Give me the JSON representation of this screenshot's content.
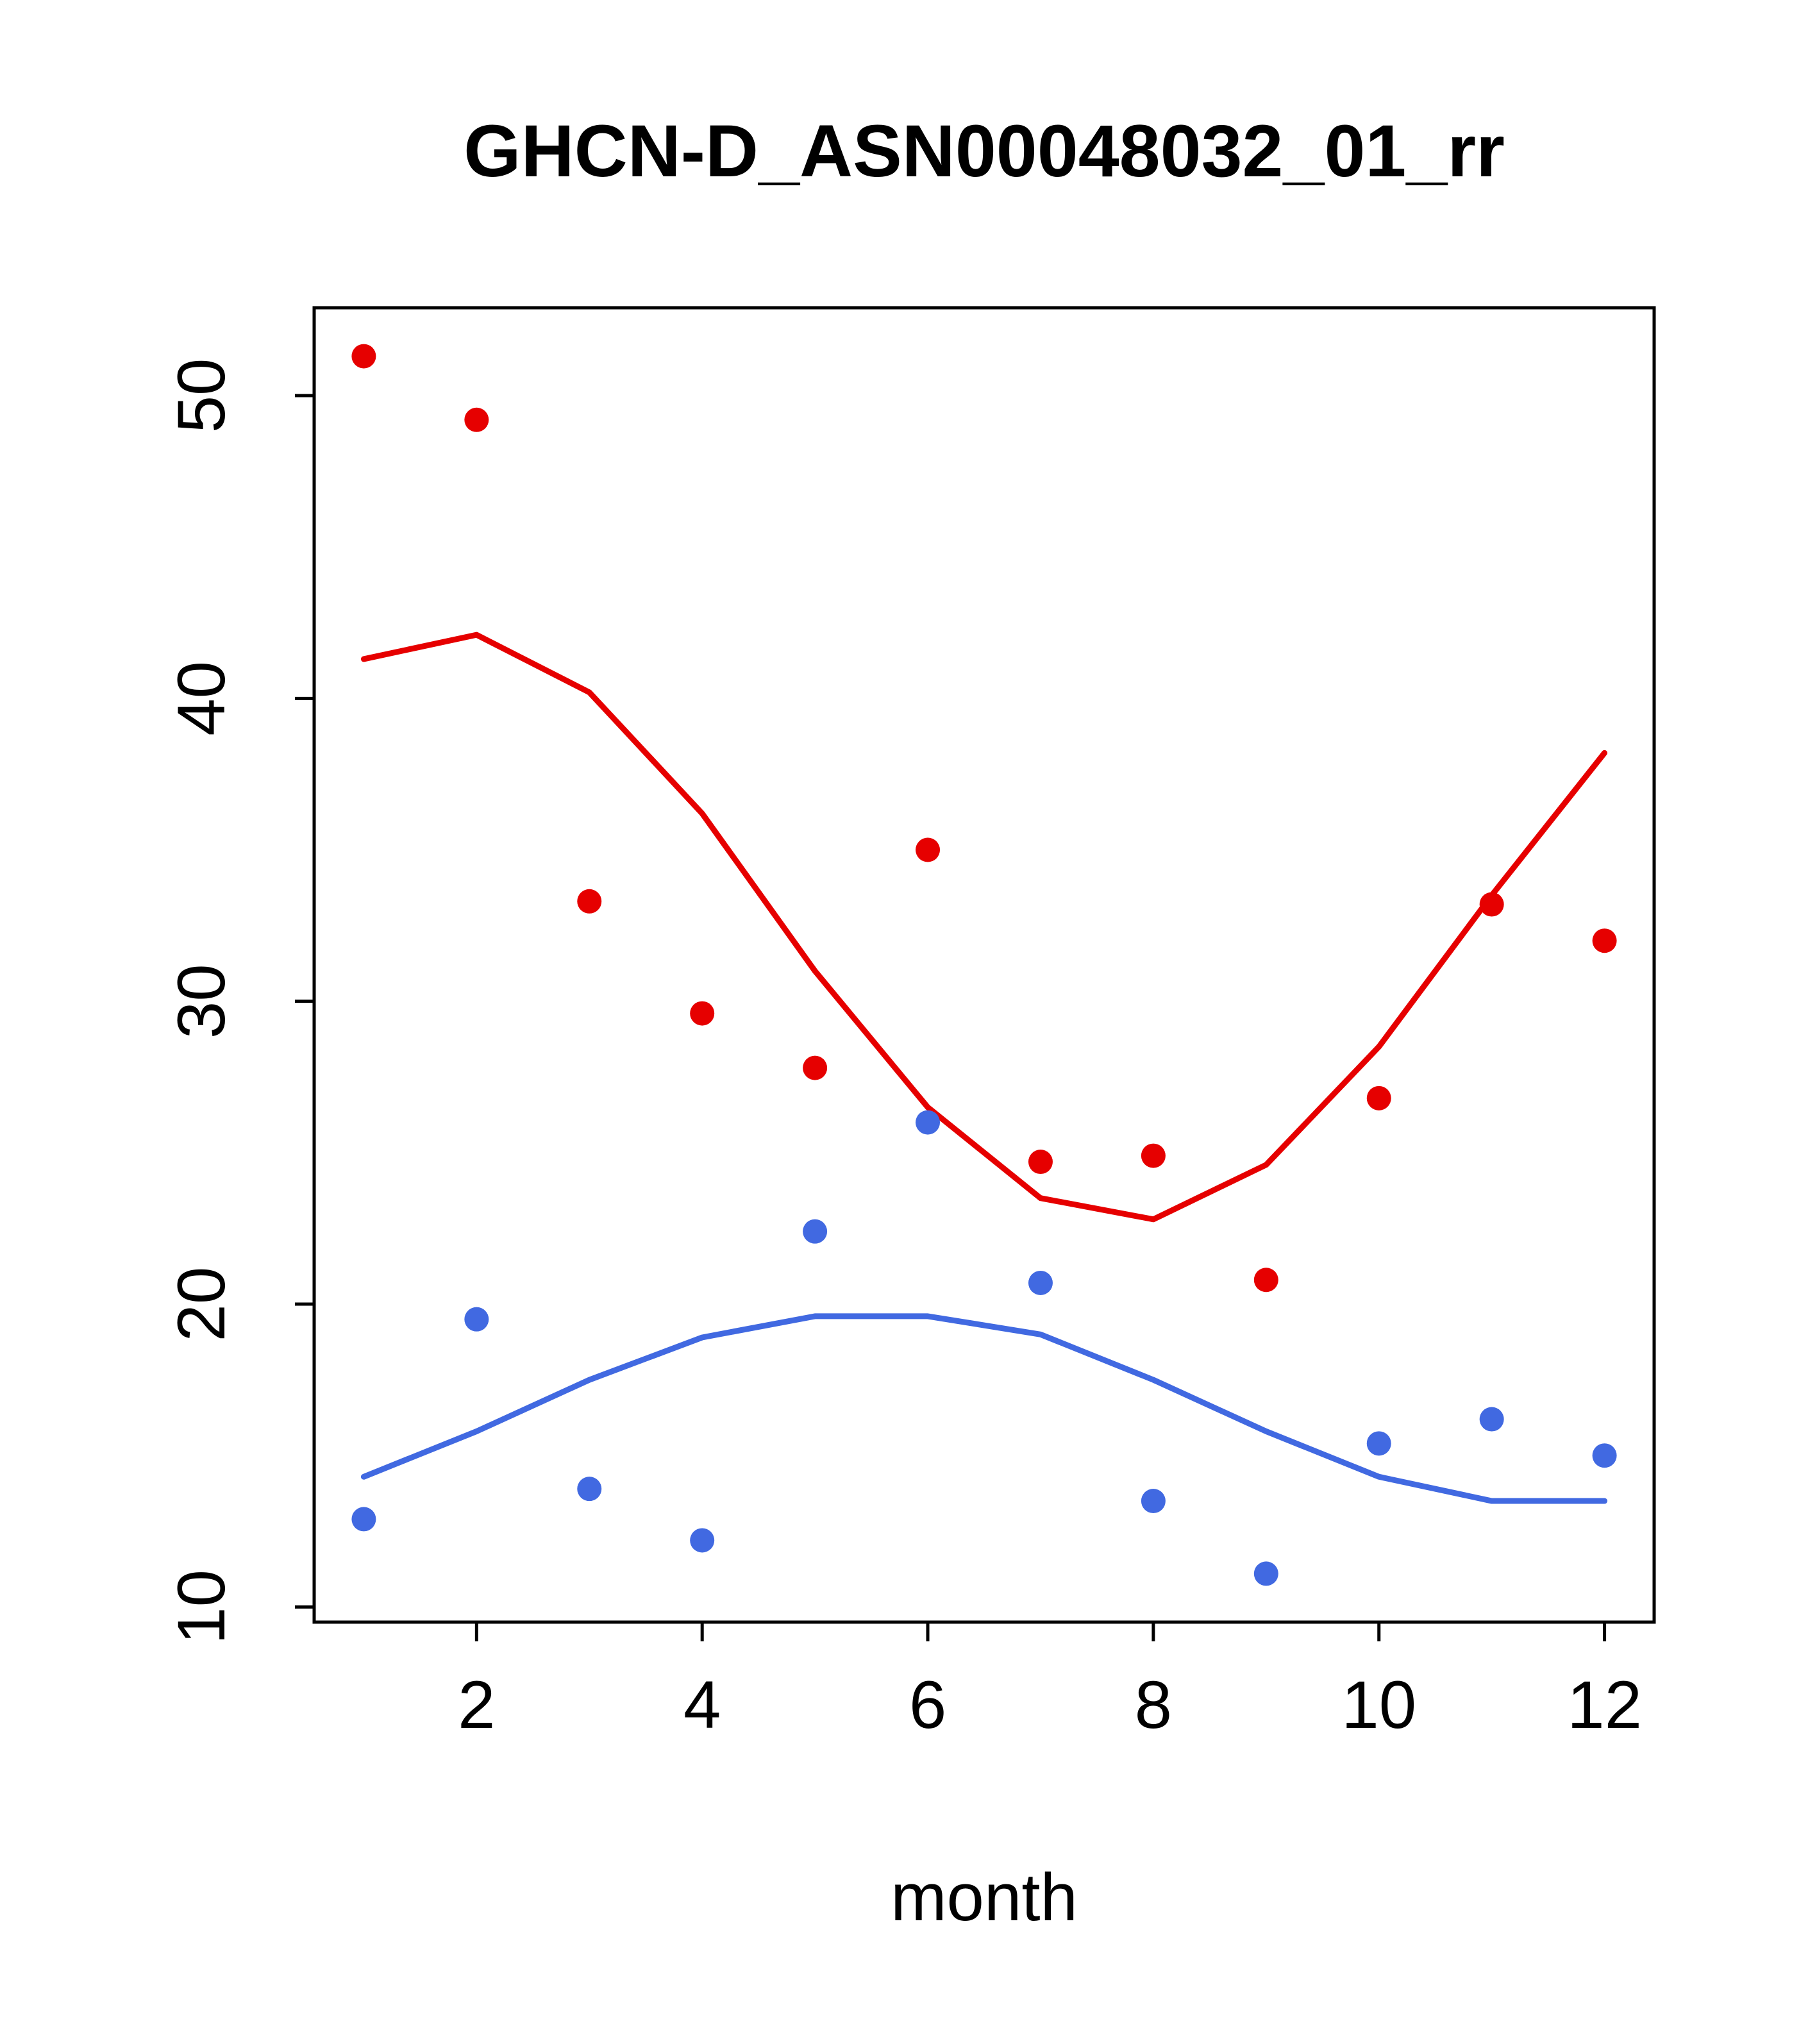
{
  "chart_data": {
    "type": "scatter",
    "title": "GHCN-D_ASN00048032_01_rr",
    "xlabel": "month",
    "ylabel": "",
    "x": [
      1,
      2,
      3,
      4,
      5,
      6,
      7,
      8,
      9,
      10,
      11,
      12
    ],
    "series": [
      {
        "name": "red-smooth-line",
        "kind": "line",
        "color": "#e60000",
        "values": [
          41.3,
          42.1,
          40.2,
          36.2,
          31.0,
          26.5,
          23.5,
          22.8,
          24.6,
          28.5,
          33.5,
          38.2
        ]
      },
      {
        "name": "blue-smooth-line",
        "kind": "line",
        "color": "#4169e1",
        "values": [
          14.3,
          15.8,
          17.5,
          18.9,
          19.6,
          19.6,
          19.0,
          17.5,
          15.8,
          14.3,
          13.5,
          13.5
        ]
      },
      {
        "name": "red-points",
        "kind": "scatter",
        "color": "#e60000",
        "values": [
          51.3,
          49.2,
          33.3,
          29.6,
          27.8,
          35.0,
          24.7,
          24.9,
          20.8,
          26.8,
          33.2,
          32.0
        ]
      },
      {
        "name": "blue-points",
        "kind": "scatter",
        "color": "#4169e1",
        "values": [
          12.9,
          19.5,
          13.9,
          12.2,
          22.4,
          26.0,
          20.7,
          13.5,
          11.1,
          15.4,
          16.2,
          15.0
        ]
      }
    ],
    "xticks": [
      2,
      4,
      6,
      8,
      10,
      12
    ],
    "yticks": [
      10,
      20,
      30,
      40,
      50
    ],
    "xlim": [
      0.56,
      12.44
    ],
    "ylim": [
      9.5,
      52.9
    ],
    "grid": false,
    "legend": "none",
    "colors": {
      "red_series": "#e60000",
      "blue_series": "#4169e1",
      "axis": "#000000",
      "background": "#ffffff"
    }
  }
}
